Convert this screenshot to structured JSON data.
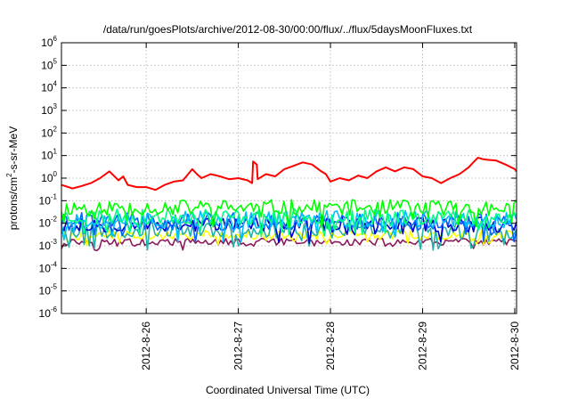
{
  "chart_data": {
    "type": "line",
    "title": "/data/run/goesPlots/archive/2012-08-30/00:00/flux/../flux/5daysMoonFluxes.txt",
    "xlabel": "Coordinated Universal Time (UTC)",
    "ylabel_base": "protons/cm",
    "ylabel_sup": "2",
    "ylabel_rest": "-s-sr-MeV",
    "yscale": "log",
    "ylim": [
      "1e-6",
      "1e6"
    ],
    "y_tick_exponents": [
      "-6",
      "-5",
      "-4",
      "-3",
      "-2",
      "-1",
      "0",
      "1",
      "2",
      "3",
      "4",
      "5",
      "6"
    ],
    "y_tick_base": "10",
    "xlim": [
      "2012-8-25 02:00",
      "2012-8-30 00:30"
    ],
    "x_tick_labels": [
      "2012-8-26",
      "2012-8-27",
      "2012-8-28",
      "2012-8-29",
      "2012-8-30"
    ],
    "x_tick_days": [
      1,
      2,
      3,
      4,
      5
    ],
    "x_range_days": [
      0.08,
      5.02
    ],
    "grid": true,
    "series": [
      {
        "color": "#ff0000",
        "x_days": [
          0.08,
          0.2,
          0.3,
          0.4,
          0.5,
          0.6,
          0.7,
          0.75,
          0.8,
          0.9,
          1.0,
          1.1,
          1.2,
          1.3,
          1.4,
          1.5,
          1.55,
          1.6,
          1.7,
          1.8,
          1.9,
          2.0,
          2.1,
          2.15,
          2.16,
          2.2,
          2.21,
          2.3,
          2.4,
          2.5,
          2.6,
          2.7,
          2.8,
          2.9,
          2.95,
          3.0,
          3.1,
          3.2,
          3.3,
          3.4,
          3.5,
          3.6,
          3.7,
          3.8,
          3.9,
          4.0,
          4.1,
          4.2,
          4.3,
          4.4,
          4.5,
          4.55,
          4.6,
          4.65,
          4.7,
          4.8,
          4.9,
          5.0,
          5.02
        ],
        "values": [
          0.5,
          0.35,
          0.45,
          0.6,
          1.0,
          2.0,
          0.8,
          1.2,
          0.5,
          0.4,
          0.4,
          0.3,
          0.5,
          0.7,
          0.8,
          2.5,
          1.5,
          1.0,
          1.5,
          1.2,
          0.9,
          1.0,
          0.8,
          0.6,
          5.5,
          4.0,
          0.9,
          1.5,
          1.2,
          2.5,
          3.5,
          5.0,
          4.0,
          2.0,
          1.5,
          0.7,
          1.0,
          0.8,
          1.3,
          1.0,
          2.0,
          3.0,
          2.0,
          3.0,
          2.5,
          1.2,
          1.0,
          0.6,
          1.0,
          1.5,
          3.0,
          5.0,
          8.0,
          7.0,
          6.5,
          6.0,
          4.0,
          2.5,
          2.0
        ]
      },
      {
        "color": "#00ff00",
        "median": 0.05,
        "jitter": 0.35,
        "seed": 11
      },
      {
        "color": "#00ff7f",
        "median": 0.02,
        "jitter": 0.35,
        "seed": 23
      },
      {
        "color": "#00bfff",
        "median": 0.015,
        "jitter": 0.4,
        "seed": 37
      },
      {
        "color": "#0066ff",
        "median": 0.012,
        "jitter": 0.4,
        "seed": 41
      },
      {
        "color": "#0000cd",
        "median": 0.009,
        "jitter": 0.35,
        "seed": 53
      },
      {
        "color": "#20b2aa",
        "median": 0.005,
        "jitter": 0.35,
        "seed": 67
      },
      {
        "color": "#ffff00",
        "median": 0.003,
        "jitter": 0.2,
        "seed": 79
      },
      {
        "color": "#8b1a5a",
        "median": 0.0015,
        "jitter": 0.15,
        "seed": 97
      }
    ]
  }
}
